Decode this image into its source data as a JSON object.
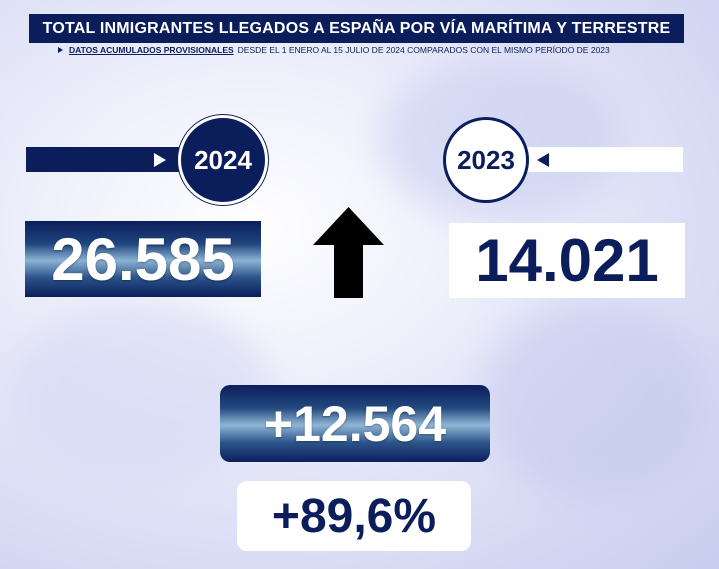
{
  "header": {
    "title": "TOTAL INMIGRANTES LLEGADOS A ESPAÑA  POR VÍA MARÍTIMA Y TERRESTRE",
    "subtitle_emphasis": "DATOS ACUMULADOS PROVISIONALES",
    "subtitle_rest": "DESDE EL 1 ENERO AL 15 JULIO DE 2024 COMPARADOS CON EL MISMO PERÍODO DE 2023"
  },
  "year_current": {
    "label": "2024",
    "value": "26.585"
  },
  "year_previous": {
    "label": "2023",
    "value": "14.021"
  },
  "comparison": {
    "difference": "+12.564",
    "percent": "+89,6%"
  },
  "icons": {
    "trend": "up-arrow-icon",
    "pointer_right": "triangle-right-icon",
    "pointer_left": "triangle-left-icon"
  },
  "colors": {
    "navy": "#0b1e5b",
    "white": "#ffffff"
  }
}
